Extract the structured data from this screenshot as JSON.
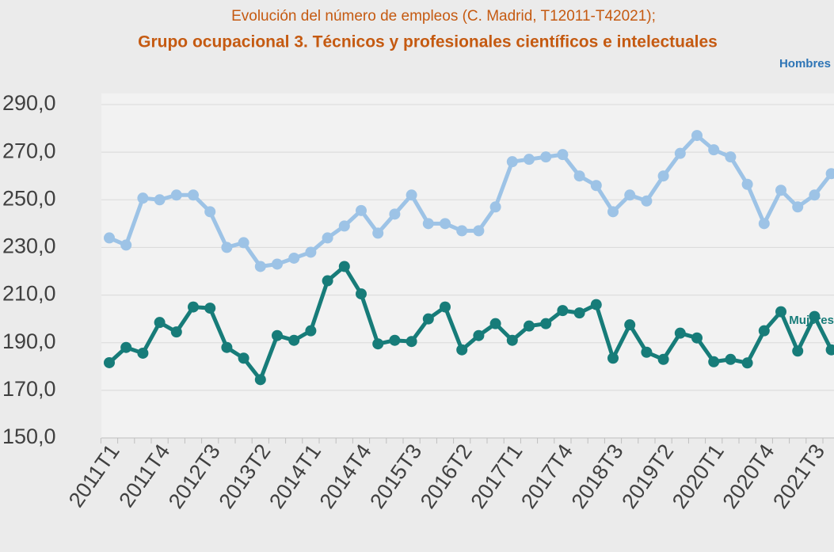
{
  "chart_data": {
    "type": "line",
    "title": "Evolución del número de empleos (C. Madrid, T12011-T42021);",
    "subtitle": "Grupo ocupacional 3. Técnicos y profesionales científicos e intelectuales",
    "categories": [
      "2011T1",
      null,
      null,
      "2011T4",
      null,
      null,
      "2012T3",
      null,
      null,
      "2013T2",
      null,
      null,
      "2014T1",
      null,
      null,
      "2014T4",
      null,
      null,
      "2015T3",
      null,
      null,
      "2016T2",
      null,
      null,
      "2017T1",
      null,
      null,
      "2017T4",
      null,
      null,
      "2018T3",
      null,
      null,
      "2019T2",
      null,
      null,
      "2020T1",
      null,
      null,
      "2020T4",
      null,
      null,
      "2021T3",
      null
    ],
    "series": [
      {
        "name": "Hombres",
        "color": "#9dc3e6",
        "values": [
          234,
          231,
          250.7,
          250,
          252,
          252,
          245,
          230,
          232,
          222,
          223,
          225.5,
          228,
          234,
          239,
          245.5,
          236,
          244,
          252,
          240,
          240,
          237,
          237,
          247,
          266,
          267,
          268,
          269,
          260,
          256,
          245,
          252,
          249.5,
          260,
          269.5,
          277,
          271,
          268,
          256.5,
          240,
          254,
          247,
          252,
          261
        ]
      },
      {
        "name": "Mujeres",
        "color": "#177c79",
        "values": [
          181.6,
          188,
          185.6,
          198.5,
          194.5,
          205,
          204.5,
          188,
          183.5,
          174.5,
          193,
          191,
          195,
          216,
          222,
          210.5,
          189.5,
          191,
          190.5,
          200,
          205,
          187,
          193,
          198,
          191,
          197,
          198,
          203.5,
          202.5,
          206,
          183.5,
          197.5,
          186,
          183,
          194,
          192,
          182,
          183,
          181.5,
          195,
          203,
          186.5,
          201,
          187
        ]
      }
    ],
    "ylim": [
      150,
      290
    ],
    "yticks": [
      {
        "value": 150,
        "label": "150,0"
      },
      {
        "value": 170,
        "label": "170,0"
      },
      {
        "value": 190,
        "label": "190,0"
      },
      {
        "value": 210,
        "label": "210,0"
      },
      {
        "value": 230,
        "label": "230,0"
      },
      {
        "value": 250,
        "label": "250,0"
      },
      {
        "value": 270,
        "label": "270,0"
      },
      {
        "value": 290,
        "label": "290,0"
      }
    ],
    "grid": true
  }
}
